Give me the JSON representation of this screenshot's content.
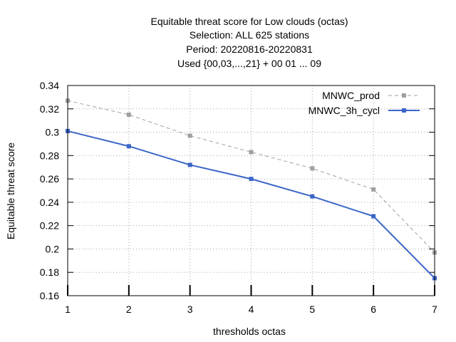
{
  "chart_data": {
    "type": "line",
    "title_lines": [
      "Equitable threat score  for Low clouds (octas)",
      "Selection: ALL    625 stations",
      "Period: 20220816-20220831",
      "Used {00,03,...,21} + 00 01 ... 09"
    ],
    "xlabel": "thresholds octas",
    "ylabel": "Equitable threat score",
    "x": [
      1,
      2,
      3,
      4,
      5,
      6,
      7
    ],
    "xlim": [
      1,
      7
    ],
    "ylim": [
      0.16,
      0.34
    ],
    "yticks": [
      0.16,
      0.18,
      0.2,
      0.22,
      0.24,
      0.26,
      0.28,
      0.3,
      0.32,
      0.34
    ],
    "ytick_labels": [
      "0.16",
      "0.18",
      "0.2",
      "0.22",
      "0.24",
      "0.26",
      "0.28",
      "0.3",
      "0.32",
      "0.34"
    ],
    "xtick_labels": [
      "1",
      "2",
      "3",
      "4",
      "5",
      "6",
      "7"
    ],
    "grid": true,
    "legend_position": "top-right",
    "series": [
      {
        "name": "MNWC_prod",
        "values": [
          0.327,
          0.315,
          0.297,
          0.283,
          0.269,
          0.251,
          0.197
        ],
        "color": "#a0a0a0",
        "dash": true
      },
      {
        "name": "MNWC_3h_cycl",
        "values": [
          0.301,
          0.288,
          0.272,
          0.26,
          0.245,
          0.228,
          0.175
        ],
        "color": "#3a66c8",
        "dash": false
      }
    ]
  }
}
